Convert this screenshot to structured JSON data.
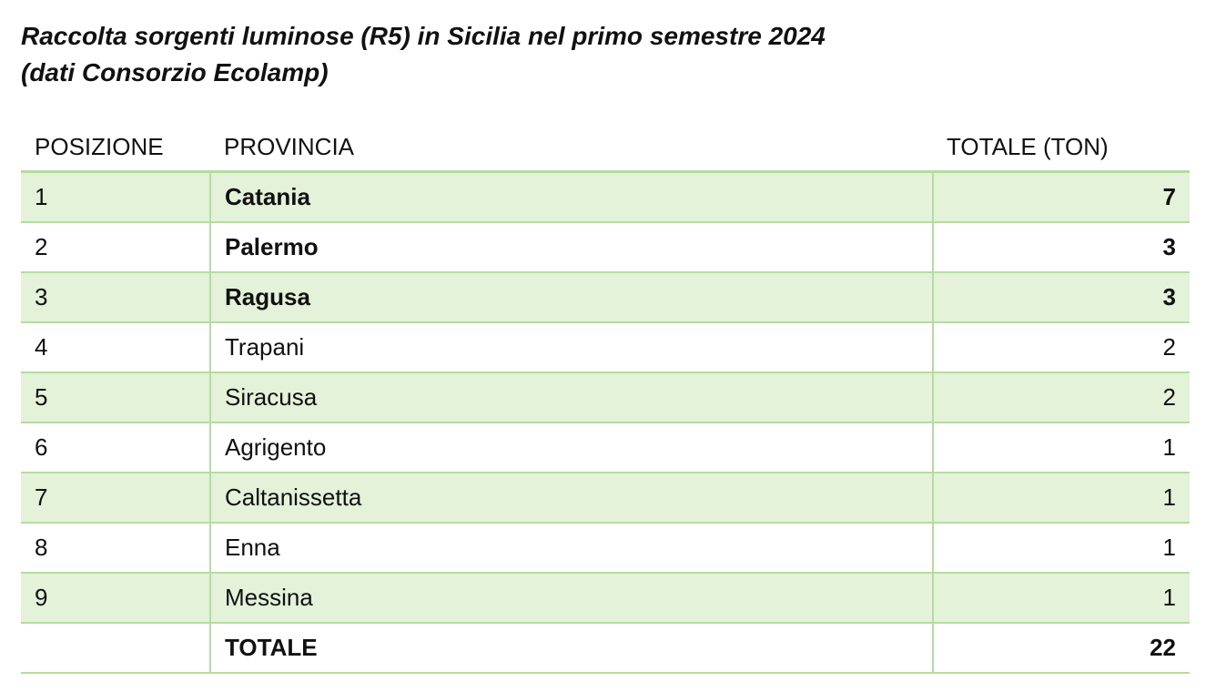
{
  "title": {
    "line1": "Raccolta sorgenti luminose (R5) in Sicilia nel primo semestre 2024",
    "line2": "(dati Consorzio Ecolamp)"
  },
  "table": {
    "headers": {
      "position": "POSIZIONE",
      "province": "PROVINCIA",
      "total": "TOTALE (TON)"
    },
    "rows": [
      {
        "position": "1",
        "province": "Catania",
        "total": "7"
      },
      {
        "position": "2",
        "province": "Palermo",
        "total": "3"
      },
      {
        "position": "3",
        "province": "Ragusa",
        "total": "3"
      },
      {
        "position": "4",
        "province": "Trapani",
        "total": "2"
      },
      {
        "position": "5",
        "province": "Siracusa",
        "total": "2"
      },
      {
        "position": "6",
        "province": "Agrigento",
        "total": "1"
      },
      {
        "position": "7",
        "province": "Caltanissetta",
        "total": "1"
      },
      {
        "position": "8",
        "province": "Enna",
        "total": "1"
      },
      {
        "position": "9",
        "province": "Messina",
        "total": "1"
      }
    ],
    "total_row": {
      "position": "",
      "label": "TOTALE",
      "value": "22"
    }
  },
  "colors": {
    "row_shade": "#e3f2d9",
    "rule": "#b5dca0"
  }
}
